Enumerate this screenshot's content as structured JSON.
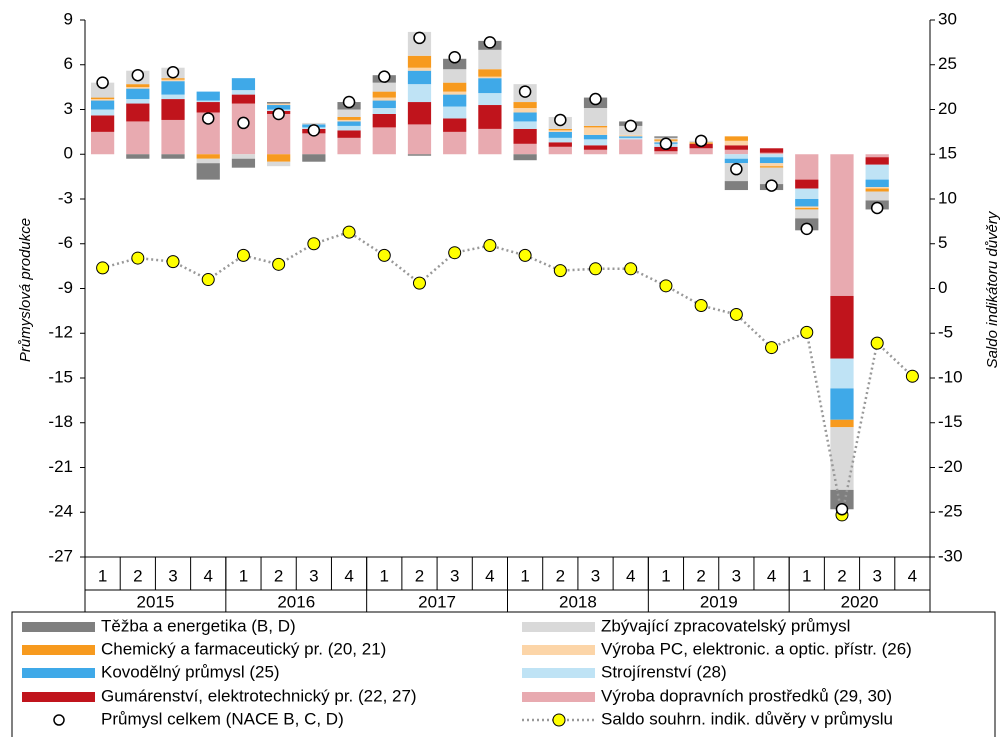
{
  "chart_data": {
    "type": "bar",
    "stacked": true,
    "ylabel": "Průmyslová produkce",
    "y2label": "Saldo indikátoru důvěry",
    "categories": [
      "1",
      "2",
      "3",
      "4",
      "1",
      "2",
      "3",
      "4",
      "1",
      "2",
      "3",
      "4",
      "1",
      "2",
      "3",
      "4",
      "1",
      "2",
      "3",
      "4",
      "1",
      "2",
      "3",
      "4"
    ],
    "years": [
      "2015",
      "2016",
      "2017",
      "2018",
      "2019",
      "2020"
    ],
    "ylim": [
      -27,
      9
    ],
    "yticks": [
      -27,
      -24,
      -21,
      -18,
      -15,
      -12,
      -9,
      -6,
      -3,
      0,
      3,
      6,
      9
    ],
    "y2lim": [
      -30,
      30
    ],
    "y2ticks": [
      -30,
      -25,
      -20,
      -15,
      -10,
      -5,
      0,
      5,
      10,
      15,
      20,
      25,
      30
    ],
    "grid": false,
    "legend": "bottom",
    "series": [
      {
        "name": "Výroba dopravních prostředků (29, 30)",
        "color": "#e8aab0",
        "values": [
          1.5,
          2.2,
          2.3,
          2.8,
          3.4,
          2.7,
          1.4,
          1.1,
          1.8,
          2.0,
          1.5,
          1.7,
          0.7,
          0.5,
          0.3,
          1.0,
          0.2,
          0.4,
          0.3,
          0.1,
          -1.7,
          -9.5,
          -0.2,
          null
        ]
      },
      {
        "name": "Gumárenství, elektrotechnický pr. (22, 27)",
        "color": "#c0141c",
        "values": [
          1.1,
          1.2,
          1.4,
          0.7,
          0.6,
          0.2,
          0.3,
          0.5,
          0.9,
          1.5,
          0.9,
          1.6,
          1.0,
          0.3,
          0.3,
          0,
          0.3,
          0.3,
          0.3,
          0.3,
          -0.6,
          -4.2,
          -0.5,
          null
        ]
      },
      {
        "name": "Strojírenství (28)",
        "color": "#bfe3f5",
        "values": [
          0.4,
          0.3,
          0.3,
          0.1,
          0.3,
          0.1,
          0.1,
          0.3,
          0.4,
          1.2,
          0.8,
          0.8,
          0.5,
          0.3,
          0.4,
          0.1,
          0.2,
          0,
          -0.3,
          -0.2,
          -0.7,
          -2.0,
          -1.0,
          null
        ]
      },
      {
        "name": "Kovodělný průmysl (25)",
        "color": "#3fa9e8",
        "values": [
          0.6,
          0.7,
          0.9,
          0.6,
          0.8,
          0.3,
          0.2,
          0.3,
          0.5,
          0.9,
          0.8,
          1.0,
          0.6,
          0.4,
          0.3,
          0.1,
          0.1,
          0,
          -0.3,
          -0.4,
          -0.5,
          -2.1,
          -0.5,
          null
        ]
      },
      {
        "name": "Výroba PC, elektronic. a optic. přístr. (26)",
        "color": "#fcd5a8",
        "values": [
          0.1,
          0.1,
          0.1,
          0,
          0,
          0.1,
          0,
          0.1,
          0.2,
          0.2,
          0.2,
          0.1,
          0.3,
          0.1,
          0.5,
          0.1,
          0.1,
          0,
          0.3,
          -0.2,
          -0.1,
          0,
          -0.1,
          null
        ]
      },
      {
        "name": "Chemický a farmaceutický pr. (20, 21)",
        "color": "#f79a1e",
        "values": [
          0.1,
          0.2,
          0.1,
          -0.3,
          0,
          -0.5,
          0,
          0.2,
          0.4,
          0.8,
          0.6,
          0.5,
          0.4,
          0.1,
          0.1,
          0,
          0.1,
          0.1,
          0.3,
          -0.1,
          -0.1,
          -0.5,
          -0.2,
          null
        ]
      },
      {
        "name": "Zbývající zpracovatelský průmysl",
        "color": "#d9d9d9",
        "values": [
          1.0,
          0.9,
          0.7,
          -0.3,
          -0.3,
          -0.3,
          0.1,
          0.5,
          0.6,
          1.6,
          0.9,
          1.3,
          1.2,
          0.8,
          1.2,
          0.6,
          0.1,
          0.1,
          -1.2,
          -1.1,
          -0.6,
          -4.2,
          -0.6,
          null
        ]
      },
      {
        "name": "Těžba a energetika (B, D)",
        "color": "#7f7f7f",
        "values": [
          0,
          -0.3,
          -0.3,
          -1.1,
          -0.6,
          0.1,
          -0.5,
          0.5,
          0.5,
          -0.1,
          0.7,
          0.6,
          -0.4,
          0,
          0.7,
          0.3,
          0.1,
          0,
          -0.6,
          -0.4,
          -0.8,
          -1.3,
          -0.6,
          null
        ]
      },
      {
        "name": "Průmysl celkem (NACE B, C, D)",
        "color": "#ffffff",
        "marker": "circle",
        "values": [
          4.8,
          5.3,
          5.5,
          2.4,
          2.1,
          2.7,
          1.6,
          3.5,
          5.2,
          7.8,
          6.5,
          7.5,
          4.2,
          2.3,
          3.7,
          1.9,
          0.7,
          0.9,
          -1.0,
          -2.1,
          -5.0,
          -23.8,
          -3.6,
          null
        ]
      },
      {
        "name": "Saldo souhrn. indik. důvěry v průmyslu",
        "color": "#ffff00",
        "type": "line",
        "axis": "y2",
        "values": [
          2.3,
          3.4,
          3.0,
          1.0,
          3.7,
          2.7,
          5.0,
          6.3,
          3.7,
          0.6,
          4.0,
          4.8,
          3.7,
          2.0,
          2.2,
          2.2,
          0.3,
          -1.9,
          -2.9,
          -6.6,
          -4.9,
          -25.3,
          -6.1,
          -9.8
        ]
      }
    ]
  }
}
